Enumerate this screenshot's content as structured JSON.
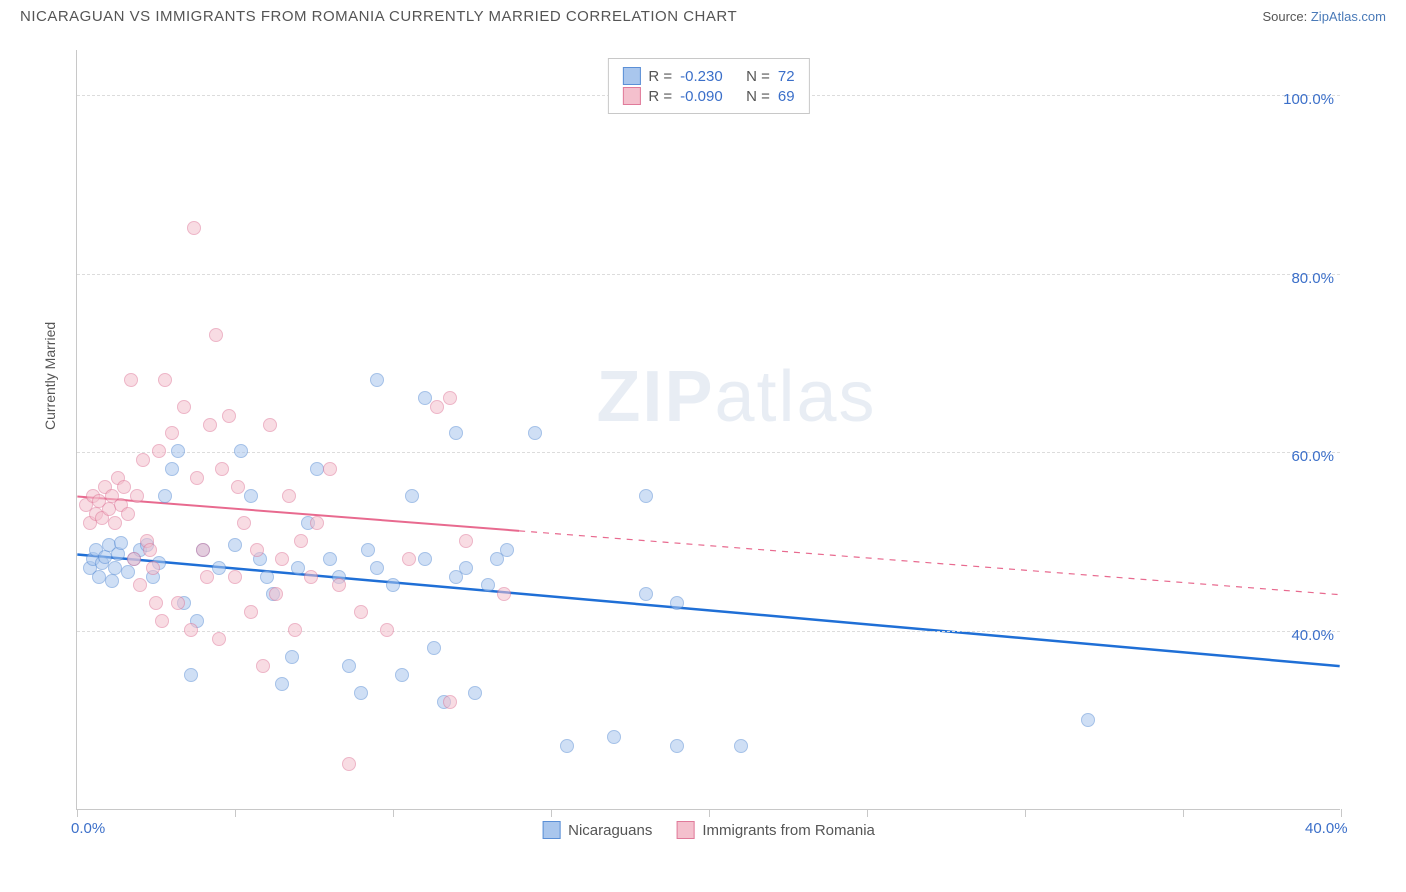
{
  "header": {
    "title": "NICARAGUAN VS IMMIGRANTS FROM ROMANIA CURRENTLY MARRIED CORRELATION CHART",
    "source_prefix": "Source: ",
    "source_link": "ZipAtlas.com"
  },
  "watermark": {
    "bold": "ZIP",
    "rest": "atlas"
  },
  "chart": {
    "type": "scatter",
    "ylabel": "Currently Married",
    "xlim": [
      0,
      40
    ],
    "ylim": [
      20,
      105
    ],
    "xtick_positions": [
      0,
      5,
      10,
      15,
      20,
      25,
      30,
      35,
      40
    ],
    "xtick_labels": {
      "0": "0.0%",
      "40": "40.0%"
    },
    "ytick_positions": [
      40,
      60,
      80,
      100
    ],
    "ytick_labels": {
      "40": "40.0%",
      "60": "60.0%",
      "80": "80.0%",
      "100": "100.0%"
    },
    "grid_color": "#dcdcdc",
    "axis_color": "#c8c8c8",
    "background_color": "#ffffff",
    "label_fontsize": 14,
    "tick_fontsize": 15,
    "tick_color": "#3b6fc9",
    "marker_radius": 7,
    "marker_opacity": 0.55,
    "series": [
      {
        "name": "Nicaraguans",
        "fill": "#a9c6ed",
        "stroke": "#5b8fd6",
        "r": "-0.230",
        "n": "72",
        "trend": {
          "x1": 0,
          "y1": 48.5,
          "x2": 40,
          "y2": 36,
          "color": "#1f6fd6",
          "width": 2.5,
          "solid_until_x": 40
        },
        "points": [
          [
            0.4,
            47
          ],
          [
            0.5,
            48
          ],
          [
            0.6,
            49
          ],
          [
            0.7,
            46
          ],
          [
            0.8,
            47.5
          ],
          [
            0.9,
            48.2
          ],
          [
            1.0,
            49.5
          ],
          [
            1.1,
            45.5
          ],
          [
            1.2,
            47
          ],
          [
            1.3,
            48.5
          ],
          [
            1.4,
            49.8
          ],
          [
            1.6,
            46.5
          ],
          [
            1.8,
            48
          ],
          [
            2.0,
            49
          ],
          [
            2.2,
            49.5
          ],
          [
            2.4,
            46
          ],
          [
            2.6,
            47.5
          ],
          [
            2.8,
            55
          ],
          [
            3.0,
            58
          ],
          [
            3.2,
            60
          ],
          [
            3.4,
            43
          ],
          [
            3.6,
            35
          ],
          [
            3.8,
            41
          ],
          [
            4.0,
            49
          ],
          [
            4.5,
            47
          ],
          [
            5.0,
            49.5
          ],
          [
            5.2,
            60
          ],
          [
            5.5,
            55
          ],
          [
            5.8,
            48
          ],
          [
            6.0,
            46
          ],
          [
            6.2,
            44
          ],
          [
            6.5,
            34
          ],
          [
            6.8,
            37
          ],
          [
            7.0,
            47
          ],
          [
            7.3,
            52
          ],
          [
            7.6,
            58
          ],
          [
            8.0,
            48
          ],
          [
            8.3,
            46
          ],
          [
            8.6,
            36
          ],
          [
            9.0,
            33
          ],
          [
            9.2,
            49
          ],
          [
            9.5,
            47
          ],
          [
            9.5,
            68
          ],
          [
            10.0,
            45
          ],
          [
            10.3,
            35
          ],
          [
            10.6,
            55
          ],
          [
            11.0,
            48
          ],
          [
            11.0,
            66
          ],
          [
            11.3,
            38
          ],
          [
            11.6,
            32
          ],
          [
            12.0,
            46
          ],
          [
            12.0,
            62
          ],
          [
            12.3,
            47
          ],
          [
            12.6,
            33
          ],
          [
            13.0,
            45
          ],
          [
            13.3,
            48
          ],
          [
            13.6,
            49
          ],
          [
            14.5,
            62
          ],
          [
            15.5,
            27
          ],
          [
            17.0,
            28
          ],
          [
            18.0,
            55
          ],
          [
            18.0,
            44
          ],
          [
            19.0,
            27
          ],
          [
            19.0,
            43
          ],
          [
            21.0,
            27
          ],
          [
            32.0,
            30
          ]
        ]
      },
      {
        "name": "Immigrants from Romania",
        "fill": "#f4c0cd",
        "stroke": "#e07a9a",
        "r": "-0.090",
        "n": "69",
        "trend": {
          "x1": 0,
          "y1": 55,
          "x2": 40,
          "y2": 44,
          "color": "#e86a8f",
          "width": 2,
          "solid_until_x": 14
        },
        "points": [
          [
            0.3,
            54
          ],
          [
            0.4,
            52
          ],
          [
            0.5,
            55
          ],
          [
            0.6,
            53
          ],
          [
            0.7,
            54.5
          ],
          [
            0.8,
            52.5
          ],
          [
            0.9,
            56
          ],
          [
            1.0,
            53.5
          ],
          [
            1.1,
            55
          ],
          [
            1.2,
            52
          ],
          [
            1.3,
            57
          ],
          [
            1.4,
            54
          ],
          [
            1.5,
            56
          ],
          [
            1.6,
            53
          ],
          [
            1.7,
            68
          ],
          [
            1.8,
            48
          ],
          [
            1.9,
            55
          ],
          [
            2.0,
            45
          ],
          [
            2.1,
            59
          ],
          [
            2.2,
            50
          ],
          [
            2.3,
            49
          ],
          [
            2.4,
            47
          ],
          [
            2.5,
            43
          ],
          [
            2.6,
            60
          ],
          [
            2.7,
            41
          ],
          [
            2.8,
            68
          ],
          [
            3.0,
            62
          ],
          [
            3.2,
            43
          ],
          [
            3.4,
            65
          ],
          [
            3.6,
            40
          ],
          [
            3.7,
            85
          ],
          [
            3.8,
            57
          ],
          [
            4.0,
            49
          ],
          [
            4.1,
            46
          ],
          [
            4.2,
            63
          ],
          [
            4.4,
            73
          ],
          [
            4.5,
            39
          ],
          [
            4.6,
            58
          ],
          [
            4.8,
            64
          ],
          [
            5.0,
            46
          ],
          [
            5.1,
            56
          ],
          [
            5.3,
            52
          ],
          [
            5.5,
            42
          ],
          [
            5.7,
            49
          ],
          [
            5.9,
            36
          ],
          [
            6.1,
            63
          ],
          [
            6.3,
            44
          ],
          [
            6.5,
            48
          ],
          [
            6.7,
            55
          ],
          [
            6.9,
            40
          ],
          [
            7.1,
            50
          ],
          [
            7.4,
            46
          ],
          [
            7.6,
            52
          ],
          [
            8.0,
            58
          ],
          [
            8.3,
            45
          ],
          [
            8.6,
            25
          ],
          [
            9.0,
            42
          ],
          [
            9.8,
            40
          ],
          [
            10.5,
            48
          ],
          [
            11.4,
            65
          ],
          [
            11.8,
            66
          ],
          [
            11.8,
            32
          ],
          [
            12.3,
            50
          ],
          [
            13.5,
            44
          ]
        ]
      }
    ]
  }
}
